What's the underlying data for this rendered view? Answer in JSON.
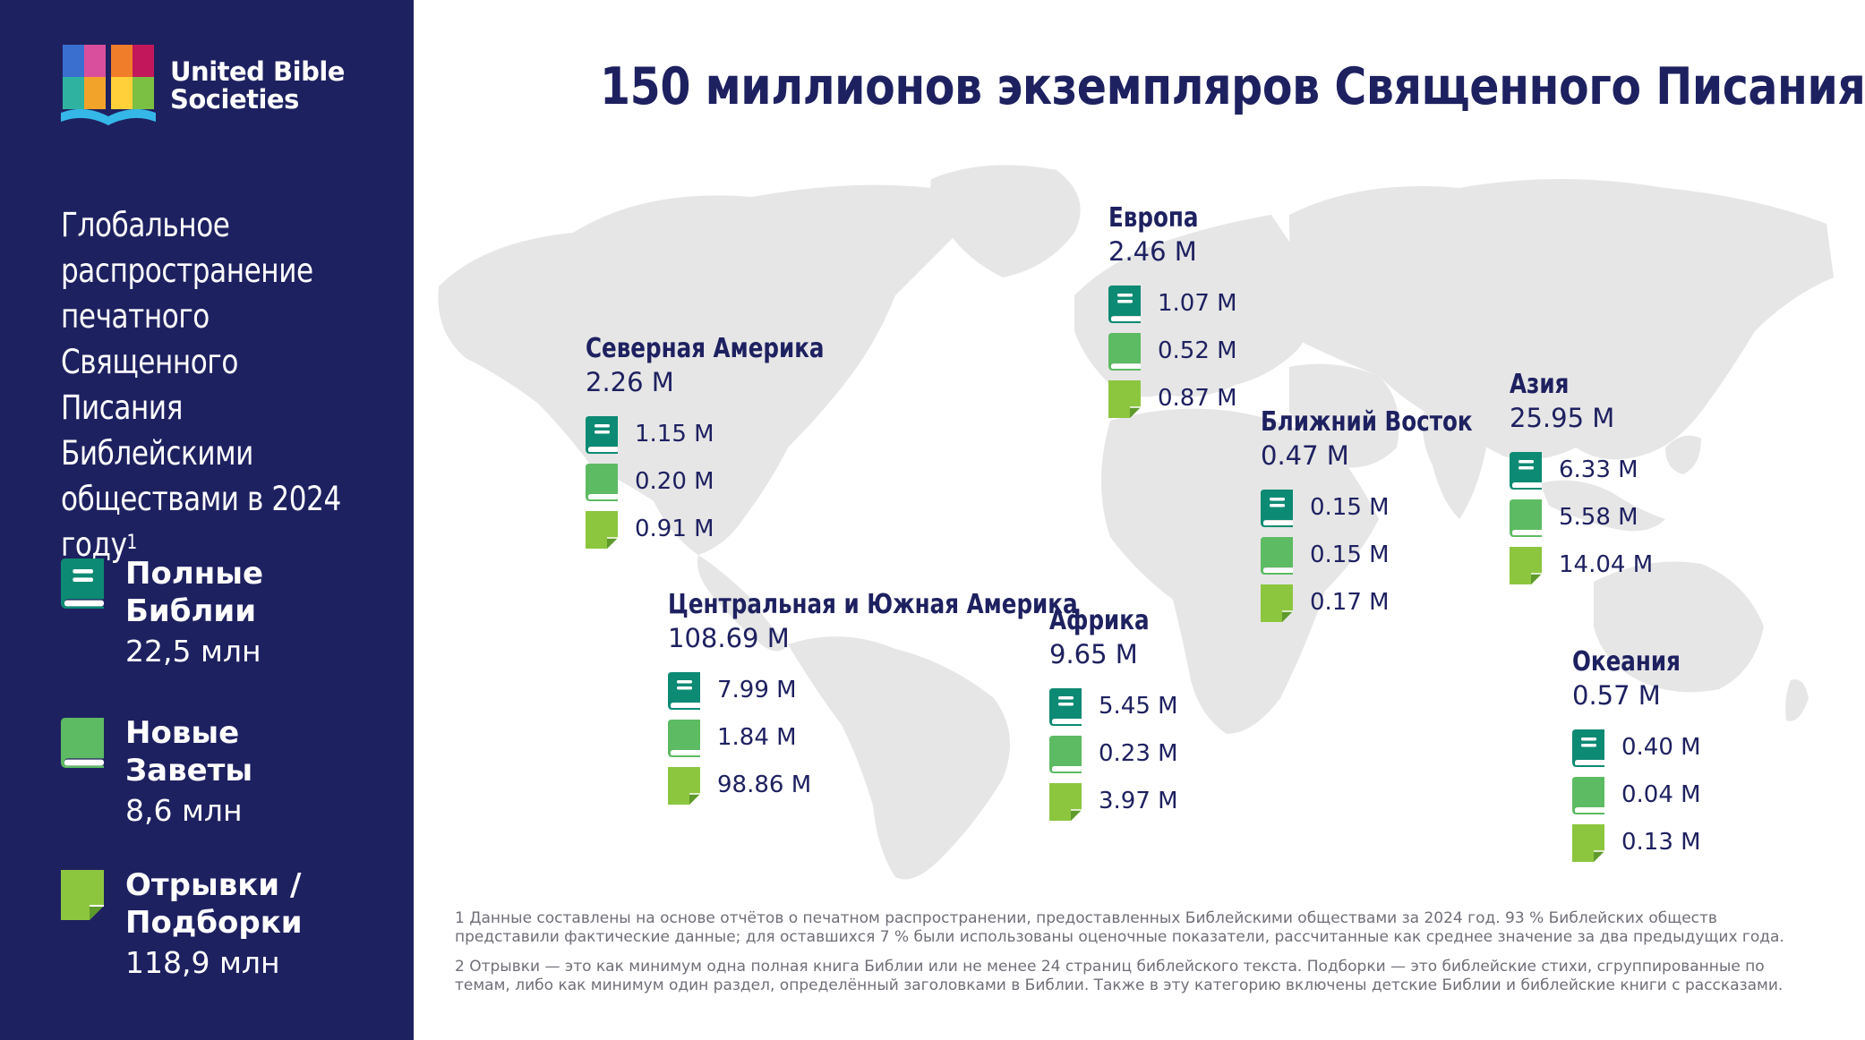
{
  "brand": {
    "logo_line1": "United Bible",
    "logo_line2": "Societies"
  },
  "sidebar": {
    "subtitle": "Глобальное распространение печатного Священного Писания Библейскими обществами в 2024 году",
    "subtitle_sup": "1",
    "legend": [
      {
        "icon": "full-bible-icon",
        "name_line1": "Полные",
        "name_line2": "Библии",
        "value": "22,5 млн",
        "color": "#0d8a73"
      },
      {
        "icon": "new-testament-icon",
        "name_line1": "Новые",
        "name_line2": "Заветы",
        "value": "8,6 млн",
        "color": "#5dbb63"
      },
      {
        "icon": "portion-icon",
        "name_line1": "Отрывки /",
        "name_line2": "Подборки",
        "value": "118,9 млн",
        "color": "#8cc63f"
      }
    ]
  },
  "title": "150 миллионов экземпляров Священного Писания",
  "regions": [
    {
      "key": "north-america",
      "name": "Северная Америка",
      "total": "2.26 M",
      "full": "1.15 M",
      "nt": "0.20 M",
      "portions": "0.91 M"
    },
    {
      "key": "europe",
      "name": "Европа",
      "total": "2.46 M",
      "full": "1.07 M",
      "nt": "0.52 M",
      "portions": "0.87 M"
    },
    {
      "key": "middle-east",
      "name": "Ближний Восток",
      "total": "0.47 M",
      "full": "0.15 M",
      "nt": "0.15 M",
      "portions": "0.17 M"
    },
    {
      "key": "asia",
      "name": "Азия",
      "total": "25.95 M",
      "full": "6.33 M",
      "nt": "5.58 M",
      "portions": "14.04 M"
    },
    {
      "key": "latin-america",
      "name": "Центральная и Южная Америка",
      "total": "108.69 M",
      "full": "7.99 M",
      "nt": "1.84 M",
      "portions": "98.86 M"
    },
    {
      "key": "africa",
      "name": "Африка",
      "total": "9.65 M",
      "full": "5.45 M",
      "nt": "0.23 M",
      "portions": "3.97 M"
    },
    {
      "key": "oceania",
      "name": "Океания",
      "total": "0.57 M",
      "full": "0.40 M",
      "nt": "0.04 M",
      "portions": "0.13 M"
    }
  ],
  "footnotes": [
    "1 Данные составлены на основе отчётов о печатном распространении, предоставленных Библейскими обществами за 2024 год. 93 % Библейских обществ представили фактические данные; для оставшихся 7 % были использованы оценочные показатели, рассчитанные как среднее значение за два предыдущих года.",
    "2 Отрывки — это как минимум одна полная книга Библии или не менее 24 страниц библейского текста. Подборки — это библейские стихи, сгруппированные по темам, либо как минимум один раздел, определённый заголовками в Библии. Также в эту категорию включены детские Библии и библейские книги с рассказами."
  ]
}
